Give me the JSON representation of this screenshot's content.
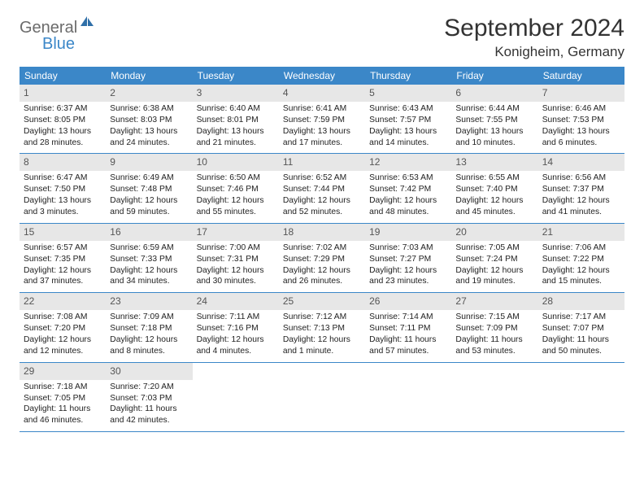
{
  "brand": {
    "text1": "General",
    "text2": "Blue"
  },
  "title": "September 2024",
  "location": "Konigheim, Germany",
  "colors": {
    "header_blue": "#3b87c8",
    "daynum_bg": "#e7e7e7",
    "text": "#333333",
    "logo_gray": "#6b6b6b"
  },
  "weekdays": [
    "Sunday",
    "Monday",
    "Tuesday",
    "Wednesday",
    "Thursday",
    "Friday",
    "Saturday"
  ],
  "weeks": [
    [
      {
        "n": "1",
        "sr": "6:37 AM",
        "ss": "8:05 PM",
        "dl": "13 hours and 28 minutes."
      },
      {
        "n": "2",
        "sr": "6:38 AM",
        "ss": "8:03 PM",
        "dl": "13 hours and 24 minutes."
      },
      {
        "n": "3",
        "sr": "6:40 AM",
        "ss": "8:01 PM",
        "dl": "13 hours and 21 minutes."
      },
      {
        "n": "4",
        "sr": "6:41 AM",
        "ss": "7:59 PM",
        "dl": "13 hours and 17 minutes."
      },
      {
        "n": "5",
        "sr": "6:43 AM",
        "ss": "7:57 PM",
        "dl": "13 hours and 14 minutes."
      },
      {
        "n": "6",
        "sr": "6:44 AM",
        "ss": "7:55 PM",
        "dl": "13 hours and 10 minutes."
      },
      {
        "n": "7",
        "sr": "6:46 AM",
        "ss": "7:53 PM",
        "dl": "13 hours and 6 minutes."
      }
    ],
    [
      {
        "n": "8",
        "sr": "6:47 AM",
        "ss": "7:50 PM",
        "dl": "13 hours and 3 minutes."
      },
      {
        "n": "9",
        "sr": "6:49 AM",
        "ss": "7:48 PM",
        "dl": "12 hours and 59 minutes."
      },
      {
        "n": "10",
        "sr": "6:50 AM",
        "ss": "7:46 PM",
        "dl": "12 hours and 55 minutes."
      },
      {
        "n": "11",
        "sr": "6:52 AM",
        "ss": "7:44 PM",
        "dl": "12 hours and 52 minutes."
      },
      {
        "n": "12",
        "sr": "6:53 AM",
        "ss": "7:42 PM",
        "dl": "12 hours and 48 minutes."
      },
      {
        "n": "13",
        "sr": "6:55 AM",
        "ss": "7:40 PM",
        "dl": "12 hours and 45 minutes."
      },
      {
        "n": "14",
        "sr": "6:56 AM",
        "ss": "7:37 PM",
        "dl": "12 hours and 41 minutes."
      }
    ],
    [
      {
        "n": "15",
        "sr": "6:57 AM",
        "ss": "7:35 PM",
        "dl": "12 hours and 37 minutes."
      },
      {
        "n": "16",
        "sr": "6:59 AM",
        "ss": "7:33 PM",
        "dl": "12 hours and 34 minutes."
      },
      {
        "n": "17",
        "sr": "7:00 AM",
        "ss": "7:31 PM",
        "dl": "12 hours and 30 minutes."
      },
      {
        "n": "18",
        "sr": "7:02 AM",
        "ss": "7:29 PM",
        "dl": "12 hours and 26 minutes."
      },
      {
        "n": "19",
        "sr": "7:03 AM",
        "ss": "7:27 PM",
        "dl": "12 hours and 23 minutes."
      },
      {
        "n": "20",
        "sr": "7:05 AM",
        "ss": "7:24 PM",
        "dl": "12 hours and 19 minutes."
      },
      {
        "n": "21",
        "sr": "7:06 AM",
        "ss": "7:22 PM",
        "dl": "12 hours and 15 minutes."
      }
    ],
    [
      {
        "n": "22",
        "sr": "7:08 AM",
        "ss": "7:20 PM",
        "dl": "12 hours and 12 minutes."
      },
      {
        "n": "23",
        "sr": "7:09 AM",
        "ss": "7:18 PM",
        "dl": "12 hours and 8 minutes."
      },
      {
        "n": "24",
        "sr": "7:11 AM",
        "ss": "7:16 PM",
        "dl": "12 hours and 4 minutes."
      },
      {
        "n": "25",
        "sr": "7:12 AM",
        "ss": "7:13 PM",
        "dl": "12 hours and 1 minute."
      },
      {
        "n": "26",
        "sr": "7:14 AM",
        "ss": "7:11 PM",
        "dl": "11 hours and 57 minutes."
      },
      {
        "n": "27",
        "sr": "7:15 AM",
        "ss": "7:09 PM",
        "dl": "11 hours and 53 minutes."
      },
      {
        "n": "28",
        "sr": "7:17 AM",
        "ss": "7:07 PM",
        "dl": "11 hours and 50 minutes."
      }
    ],
    [
      {
        "n": "29",
        "sr": "7:18 AM",
        "ss": "7:05 PM",
        "dl": "11 hours and 46 minutes."
      },
      {
        "n": "30",
        "sr": "7:20 AM",
        "ss": "7:03 PM",
        "dl": "11 hours and 42 minutes."
      },
      null,
      null,
      null,
      null,
      null
    ]
  ],
  "labels": {
    "sunrise": "Sunrise: ",
    "sunset": "Sunset: ",
    "daylight": "Daylight: "
  }
}
